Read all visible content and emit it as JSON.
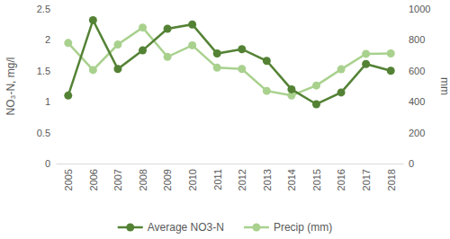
{
  "chart_data": {
    "type": "line",
    "categories": [
      "2005",
      "2006",
      "2007",
      "2008",
      "2009",
      "2010",
      "2011",
      "2012",
      "2013",
      "2014",
      "2015",
      "2016",
      "2017",
      "2018"
    ],
    "series": [
      {
        "name": "Average NO3-N",
        "color": "#548235",
        "marker": "circle",
        "values": [
          1.1,
          2.32,
          1.53,
          1.83,
          2.18,
          2.25,
          1.78,
          1.85,
          1.66,
          1.2,
          0.96,
          1.15,
          1.61,
          1.5
        ]
      },
      {
        "name": "Precip (mm)",
        "color": "#a9d18e",
        "marker": "circle",
        "axis": "y2",
        "values": [
          780,
          605,
          770,
          880,
          690,
          765,
          620,
          612,
          470,
          440,
          505,
          610,
          710,
          712
        ]
      }
    ],
    "y_label": "NO₃-N, mg/l",
    "y2_label": "mm",
    "ylim": [
      0,
      2.5
    ],
    "yticks": [
      0,
      0.5,
      1,
      1.5,
      2,
      2.5
    ],
    "y2lim": [
      0,
      1000
    ],
    "y2ticks": [
      0,
      200,
      400,
      600,
      800,
      1000
    ],
    "grid": false,
    "legend": "bottom"
  }
}
